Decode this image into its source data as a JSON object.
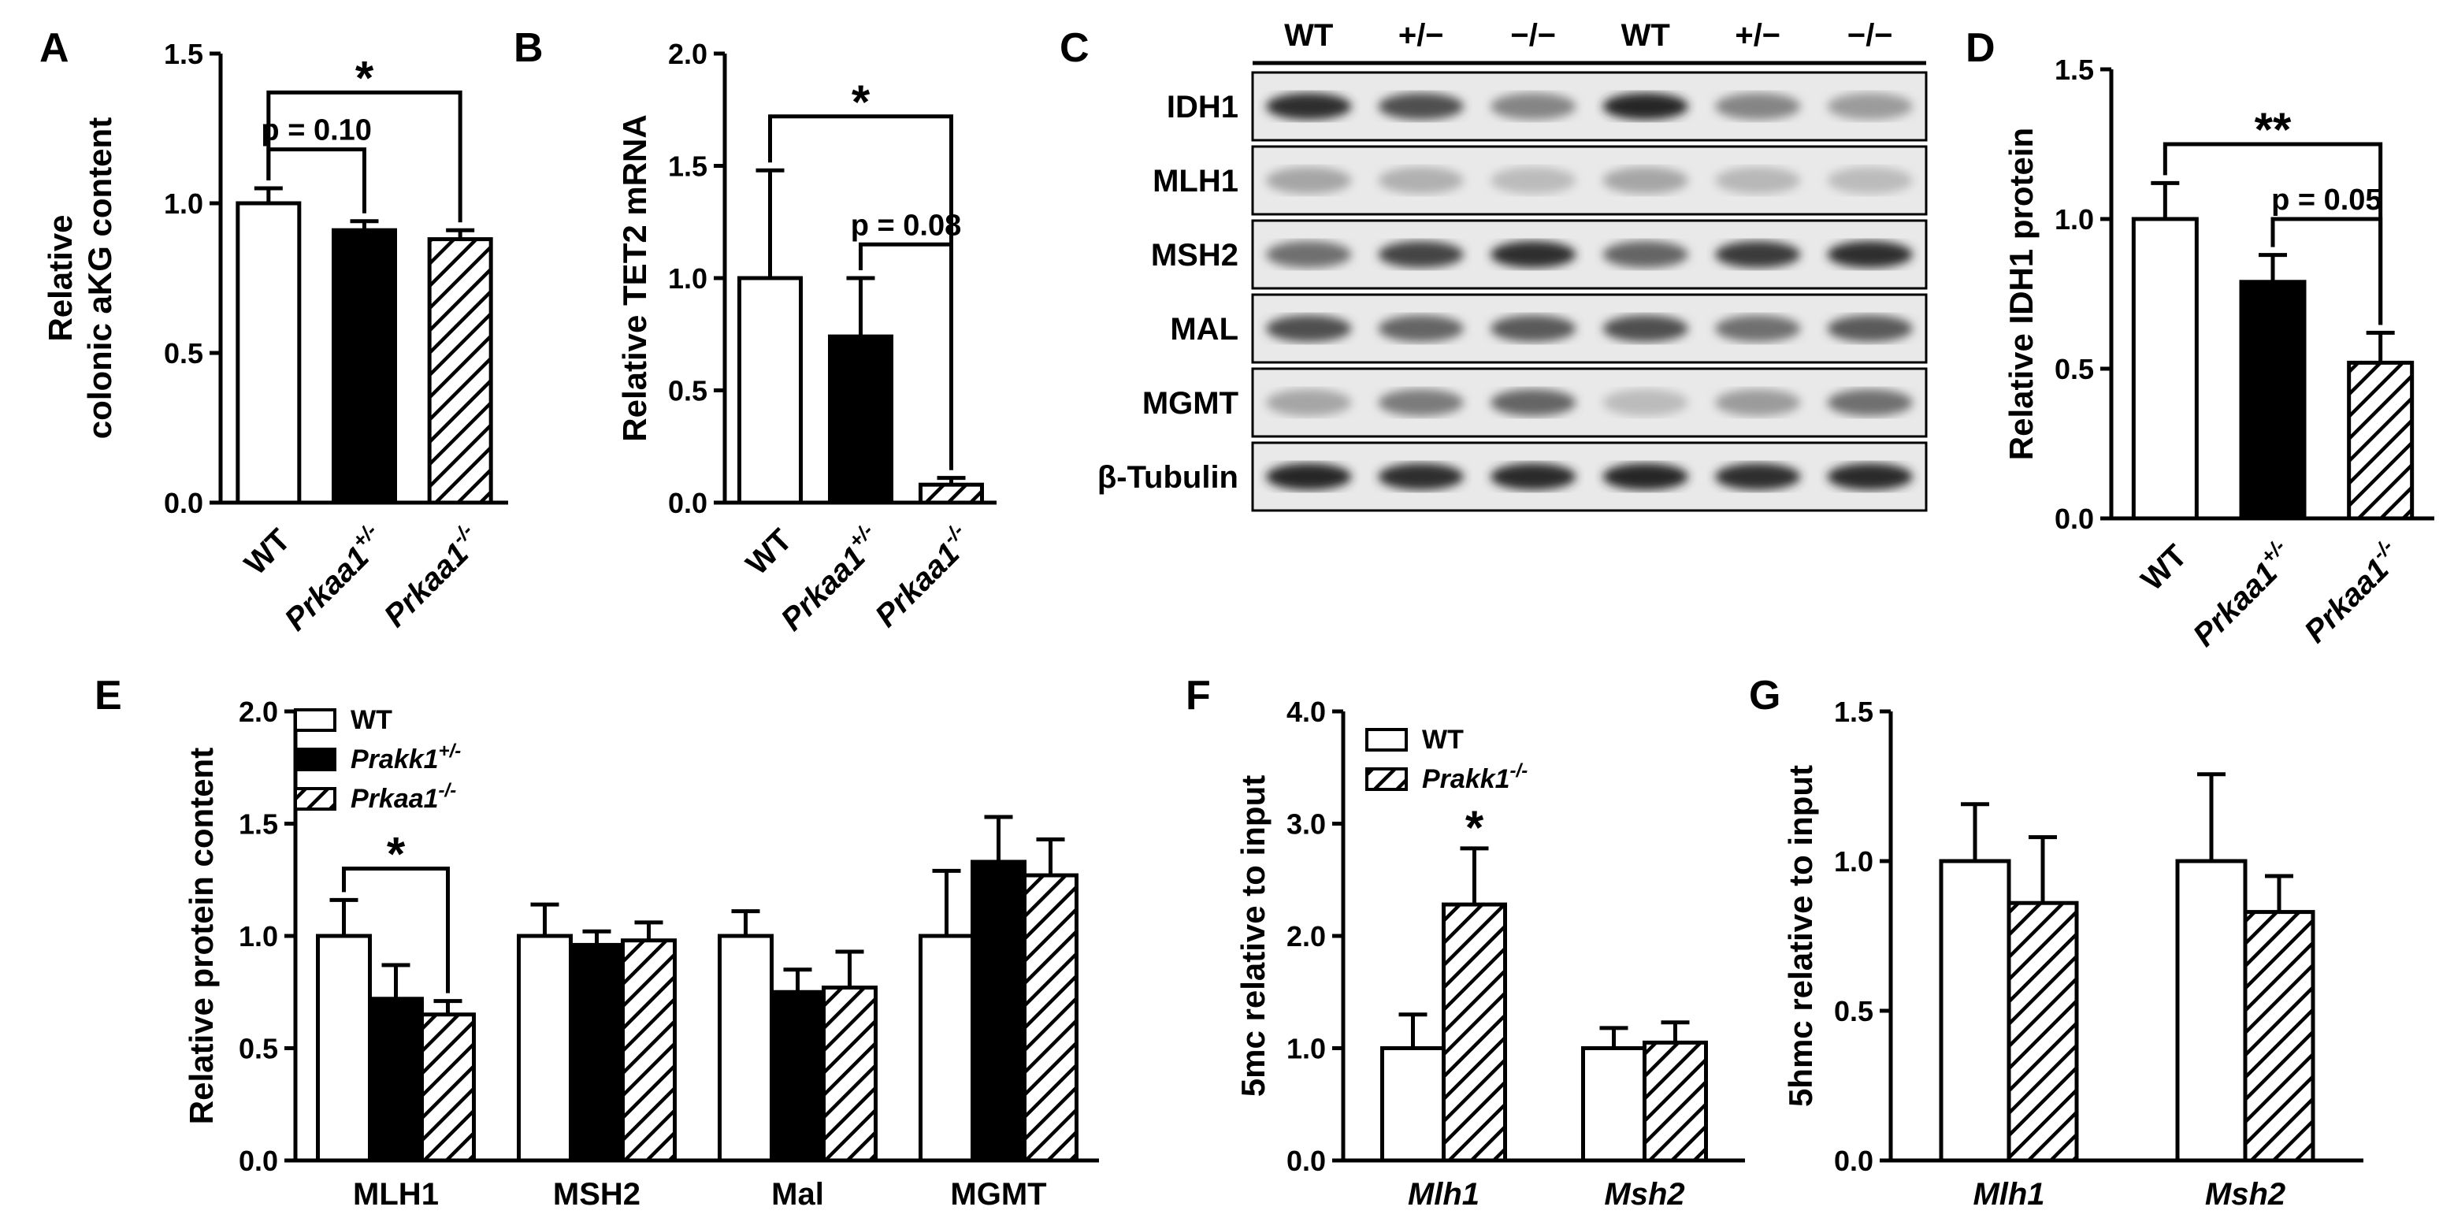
{
  "panel_letters": [
    "A",
    "B",
    "C",
    "D",
    "E",
    "F",
    "G"
  ],
  "chart_data": [
    {
      "id": "A",
      "type": "bar",
      "categories": [
        "WT",
        "Prkaa1+/-",
        "Prkaa1-/-"
      ],
      "cat_base": [
        "WT",
        "Prkaa1",
        "Prkaa1"
      ],
      "cat_sup": [
        "",
        "+/-",
        "-/-"
      ],
      "values": [
        1.0,
        0.91,
        0.88
      ],
      "errors": [
        0.05,
        0.03,
        0.03
      ],
      "styles": [
        "white",
        "black",
        "hatch"
      ],
      "ylabel": [
        "Relative",
        "colonic aKG content"
      ],
      "ylim": [
        0,
        1.5
      ],
      "yticks": [
        0.0,
        0.5,
        1.0,
        1.5
      ],
      "yticklabels": [
        "0.0",
        "0.5",
        "1.0",
        "1.5"
      ],
      "annotations": [
        {
          "from": 0,
          "to": 1,
          "text": "p = 0.10",
          "level": 1.18
        },
        {
          "from": 0,
          "to": 2,
          "text": "*",
          "level": 1.37
        }
      ]
    },
    {
      "id": "B",
      "type": "bar",
      "categories": [
        "WT",
        "Prkaa1+/-",
        "Prkaa1-/-"
      ],
      "cat_base": [
        "WT",
        "Prkaa1",
        "Prkaa1"
      ],
      "cat_sup": [
        "",
        "+/-",
        "-/-"
      ],
      "values": [
        1.0,
        0.74,
        0.08
      ],
      "errors": [
        0.48,
        0.26,
        0.03
      ],
      "styles": [
        "white",
        "black",
        "hatch"
      ],
      "ylabel": [
        "Relative TET2 mRNA"
      ],
      "ylim": [
        0,
        2.0
      ],
      "yticks": [
        0.0,
        0.5,
        1.0,
        1.5,
        2.0
      ],
      "yticklabels": [
        "0.0",
        "0.5",
        "1.0",
        "1.5",
        "2.0"
      ],
      "annotations": [
        {
          "from": 1,
          "to": 2,
          "text": "p = 0.08",
          "level": 1.15
        },
        {
          "from": 0,
          "to": 2,
          "text": "*",
          "level": 1.72
        }
      ]
    },
    {
      "id": "D",
      "type": "bar",
      "categories": [
        "WT",
        "Prkaa1+/-",
        "Prkaa1-/-"
      ],
      "cat_base": [
        "WT",
        "Prkaa1",
        "Prkaa1"
      ],
      "cat_sup": [
        "",
        "+/-",
        "-/-"
      ],
      "values": [
        1.0,
        0.79,
        0.52
      ],
      "errors": [
        0.12,
        0.09,
        0.1
      ],
      "styles": [
        "white",
        "black",
        "hatch"
      ],
      "ylabel": [
        "Relative IDH1 protein"
      ],
      "ylim": [
        0,
        1.5
      ],
      "yticks": [
        0.0,
        0.5,
        1.0,
        1.5
      ],
      "yticklabels": [
        "0.0",
        "0.5",
        "1.0",
        "1.5"
      ],
      "annotations": [
        {
          "from": 1,
          "to": 2,
          "text": "p = 0.05",
          "level": 1.0
        },
        {
          "from": 0,
          "to": 2,
          "text": "**",
          "level": 1.25
        }
      ]
    },
    {
      "id": "E",
      "type": "bar",
      "categories": [
        "MLH1",
        "MSH2",
        "Mal",
        "MGMT"
      ],
      "series": [
        {
          "name": "WT",
          "style": "white",
          "values": [
            1.0,
            1.0,
            1.0,
            1.0
          ],
          "errors": [
            0.16,
            0.14,
            0.11,
            0.29
          ]
        },
        {
          "name": "Prakk1+/-",
          "style": "black",
          "values": [
            0.72,
            0.96,
            0.75,
            1.33
          ],
          "errors": [
            0.15,
            0.06,
            0.1,
            0.2
          ]
        },
        {
          "name": "Prkaa1-/-",
          "style": "hatch",
          "values": [
            0.65,
            0.98,
            0.77,
            1.27
          ],
          "errors": [
            0.06,
            0.08,
            0.16,
            0.16
          ]
        }
      ],
      "legend_base": [
        "WT",
        "Prakk1",
        "Prkaa1"
      ],
      "legend_sup": [
        "",
        "+/-",
        "-/-"
      ],
      "ylabel": [
        "Relative protein content"
      ],
      "ylim": [
        0,
        2.0
      ],
      "yticks": [
        0.0,
        0.5,
        1.0,
        1.5,
        2.0
      ],
      "yticklabels": [
        "0.0",
        "0.5",
        "1.0",
        "1.5",
        "2.0"
      ],
      "legend_position": "top-left",
      "annotations": [
        {
          "cat": 0,
          "from": 0,
          "to": 2,
          "text": "*",
          "level": 1.3
        }
      ]
    },
    {
      "id": "F",
      "type": "bar",
      "categories": [
        "Mlh1",
        "Msh2"
      ],
      "series": [
        {
          "name": "WT",
          "style": "white",
          "values": [
            1.0,
            1.0
          ],
          "errors": [
            0.3,
            0.18
          ]
        },
        {
          "name": "Prakk1-/-",
          "style": "hatch",
          "values": [
            2.28,
            1.05
          ],
          "errors": [
            0.5,
            0.18
          ]
        }
      ],
      "legend_base": [
        "WT",
        "Prakk1"
      ],
      "legend_sup": [
        "",
        "-/-"
      ],
      "ylabel": [
        "5mc relative to input"
      ],
      "ylim": [
        0,
        4.0
      ],
      "yticks": [
        0.0,
        1.0,
        2.0,
        3.0,
        4.0
      ],
      "yticklabels": [
        "0.0",
        "1.0",
        "2.0",
        "3.0",
        "4.0"
      ],
      "legend_position": "top-left",
      "star_labels": [
        {
          "cat": 0,
          "series": 1,
          "text": "*"
        }
      ]
    },
    {
      "id": "G",
      "type": "bar",
      "categories": [
        "Mlh1",
        "Msh2"
      ],
      "series": [
        {
          "name": "WT",
          "style": "white",
          "values": [
            1.0,
            1.0
          ],
          "errors": [
            0.19,
            0.29
          ]
        },
        {
          "name": "Prakk1-/-",
          "style": "hatch",
          "values": [
            0.86,
            0.83
          ],
          "errors": [
            0.22,
            0.12
          ]
        }
      ],
      "ylabel": [
        "5hmc relative to input"
      ],
      "ylim": [
        0,
        1.5
      ],
      "yticks": [
        0.0,
        0.5,
        1.0,
        1.5
      ],
      "yticklabels": [
        "0.0",
        "0.5",
        "1.0",
        "1.5"
      ]
    }
  ],
  "western_blot": {
    "lane_labels": [
      "WT",
      "+/−",
      "−/−",
      "WT",
      "+/−",
      "−/−"
    ],
    "rows": [
      {
        "label": "IDH1",
        "intensity": [
          0.85,
          0.7,
          0.45,
          0.9,
          0.45,
          0.35
        ]
      },
      {
        "label": "MLH1",
        "intensity": [
          0.3,
          0.25,
          0.2,
          0.3,
          0.22,
          0.2
        ]
      },
      {
        "label": "MSH2",
        "intensity": [
          0.55,
          0.75,
          0.85,
          0.6,
          0.8,
          0.85
        ]
      },
      {
        "label": "MAL",
        "intensity": [
          0.7,
          0.6,
          0.65,
          0.7,
          0.55,
          0.65
        ]
      },
      {
        "label": "MGMT",
        "intensity": [
          0.3,
          0.5,
          0.6,
          0.2,
          0.35,
          0.55
        ]
      },
      {
        "label": "β-Tubulin",
        "intensity": [
          0.9,
          0.85,
          0.88,
          0.9,
          0.85,
          0.88
        ]
      }
    ]
  }
}
